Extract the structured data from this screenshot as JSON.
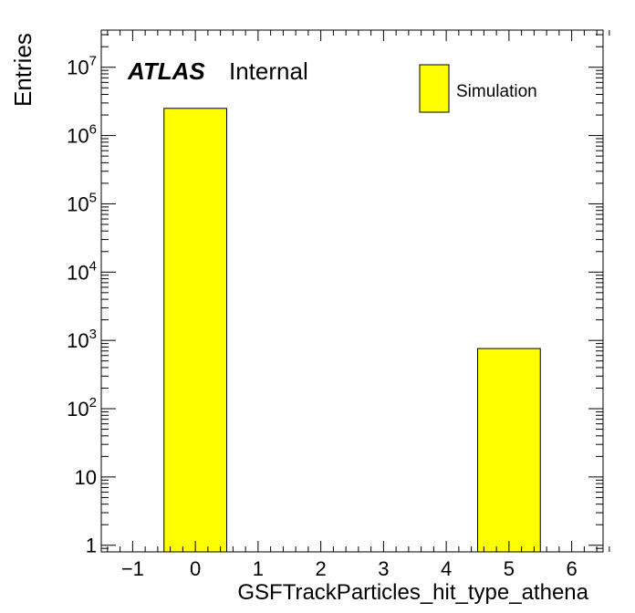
{
  "chart_data": {
    "type": "bar",
    "xlabel": "GSFTrackParticles_hit_type_athena",
    "ylabel": "Entries",
    "label_atlas": "ATLAS",
    "label_status": "Internal",
    "xlim": [
      -1.5,
      6.5
    ],
    "ylim": [
      0.8,
      35000000
    ],
    "yscale": "log",
    "grid": false,
    "legend_position": "top-right",
    "x_ticks": [
      -1,
      0,
      1,
      2,
      3,
      4,
      5,
      6
    ],
    "x_tick_labels": [
      "−1",
      "0",
      "1",
      "2",
      "3",
      "4",
      "5",
      "6"
    ],
    "y_ticks": [
      {
        "value": 1,
        "base": "1",
        "exp": ""
      },
      {
        "value": 10,
        "base": "10",
        "exp": ""
      },
      {
        "value": 100,
        "base": "10",
        "exp": "2"
      },
      {
        "value": 1000,
        "base": "10",
        "exp": "3"
      },
      {
        "value": 10000,
        "base": "10",
        "exp": "4"
      },
      {
        "value": 100000,
        "base": "10",
        "exp": "5"
      },
      {
        "value": 1000000,
        "base": "10",
        "exp": "6"
      },
      {
        "value": 10000000,
        "base": "10",
        "exp": "7"
      }
    ],
    "series": [
      {
        "name": "Simulation",
        "color": "#ffff00",
        "bins": [
          {
            "x_low": -0.5,
            "x_high": 0.5,
            "value": 2500000
          },
          {
            "x_low": 4.5,
            "x_high": 5.5,
            "value": 760
          }
        ]
      }
    ]
  }
}
